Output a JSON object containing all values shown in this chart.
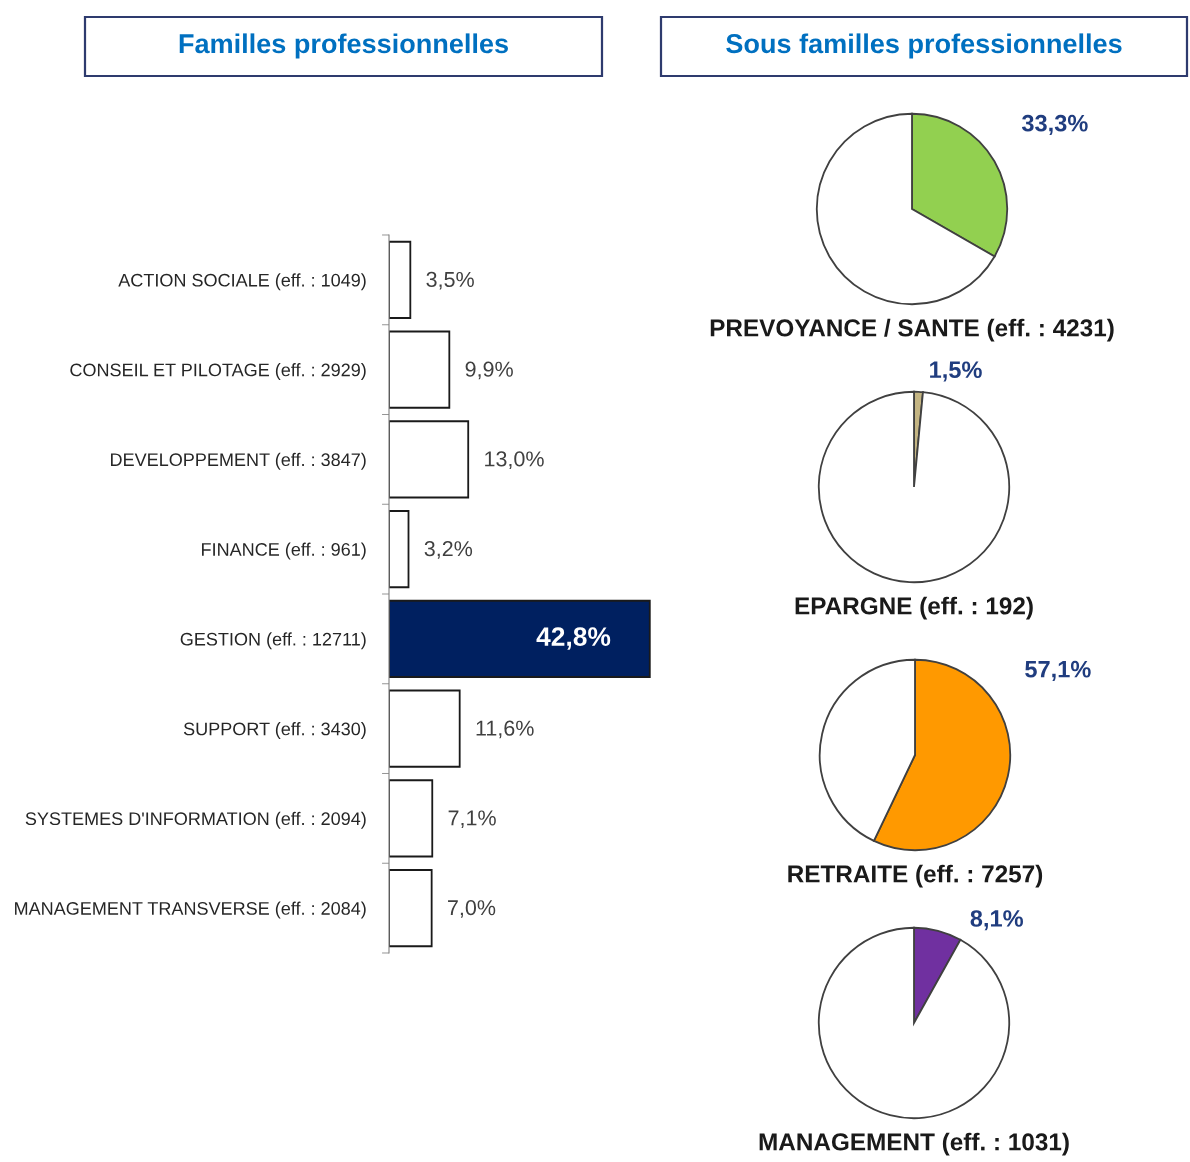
{
  "chart_data": [
    {
      "type": "bar",
      "orientation": "horizontal",
      "title": "Familles professionnelles",
      "categories": [
        "ACTION SOCIALE (eff. : 1049)",
        "CONSEIL ET PILOTAGE (eff. : 2929)",
        "DEVELOPPEMENT (eff. : 3847)",
        "FINANCE (eff. : 961)",
        "GESTION (eff. : 12711)",
        "SUPPORT (eff. : 3430)",
        "SYSTEMES D'INFORMATION (eff. : 2094)",
        "MANAGEMENT TRANSVERSE (eff. : 2084)"
      ],
      "values": [
        3.5,
        9.9,
        13.0,
        3.2,
        42.8,
        11.6,
        7.1,
        7.0
      ],
      "colors": [
        "#ffffff",
        "#ffffff",
        "#ffffff",
        "#ffffff",
        "#002060",
        "#ffffff",
        "#ffffff",
        "#ffffff"
      ],
      "value_labels": [
        "3,5%",
        "9,9%",
        "13,0%",
        "3,2%",
        "42,8%",
        "11,6%",
        "7,1%",
        "7,0%"
      ],
      "tick_labels": "y"
    },
    {
      "type": "other",
      "title": "Sous familles professionnelles"
    },
    {
      "type": "pie",
      "xlabel": "PREVOYANCE / SANTE (eff. : 4231)",
      "categories": [
        null,
        null
      ],
      "values": [
        33.3,
        66.7
      ],
      "colors": [
        "#92d050",
        "#ffffff"
      ],
      "value_labels": [
        "33,3%",
        null
      ]
    },
    {
      "type": "pie",
      "xlabel": "EPARGNE (eff. : 192)",
      "categories": [
        null,
        null
      ],
      "values": [
        1.5,
        98.5
      ],
      "colors": [
        "#c4b583",
        "#ffffff"
      ],
      "value_labels": [
        "1,5%",
        null
      ]
    },
    {
      "type": "pie",
      "xlabel": "RETRAITE (eff. : 7257)",
      "categories": [
        null,
        null
      ],
      "values": [
        57.1,
        42.9
      ],
      "colors": [
        "#ff9900",
        "#ffffff"
      ],
      "value_labels": [
        "57,1%",
        null
      ]
    },
    {
      "type": "pie",
      "xlabel": "MANAGEMENT (eff. : 1031)",
      "categories": [
        null,
        null
      ],
      "values": [
        8.1,
        91.9
      ],
      "colors": [
        "#7030a0",
        "#ffffff"
      ],
      "value_labels": [
        "8,1%",
        null
      ]
    }
  ]
}
